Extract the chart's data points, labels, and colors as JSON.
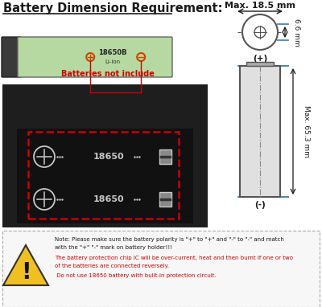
{
  "title": "Battery Dimension Requirement:",
  "bg_color": "#ffffff",
  "max_diameter_label": "Max. 18.5 mm",
  "diameter_mm": "6.6 mm",
  "length_label": "Max. 65.3 mm",
  "plus_label": "(+)",
  "minus_label": "(-)",
  "batteries_not_include": "Batteries not include",
  "note_line1": "Note: Please make sure the battery polarity is \"+\" to \"+\" and \"-\" to \"-\" and match",
  "note_line2": "with the \"+\" \"-\" mark on battery holder!!!",
  "warning_line1": "The battery protection chip IC will be over-current, heat and then burnt if one or two",
  "warning_line2": "of the batteries are connected reversely.",
  "warning_line3": " Do not use 18650 battery with built-in protection circuit.",
  "text_color_black": "#1a1a1a",
  "text_color_red": "#cc0000",
  "board_bg": "#1c1c1c",
  "board_slot": "#2a2a2a",
  "battery_green_light": "#b5d9a0",
  "battery_green_dark": "#88bb78",
  "battery_cap": "#444444",
  "dashed_red": "#cc0000",
  "blue_line": "#4488bb",
  "arrow_color": "#1a1a1a",
  "slot_text": "#c8c8c8",
  "warn_bg": "#f7f7f7",
  "warn_border": "#aaaaaa"
}
